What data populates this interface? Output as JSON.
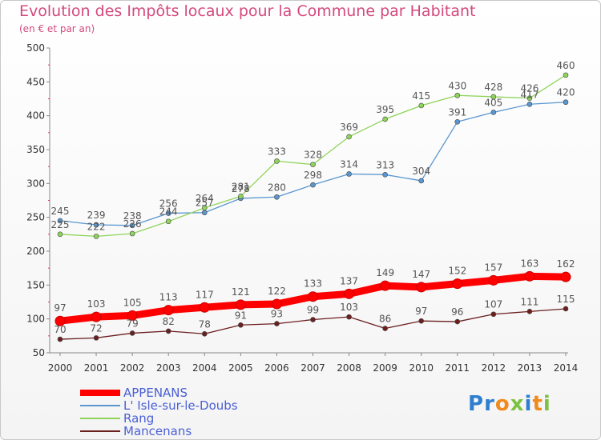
{
  "chart_data": {
    "type": "line",
    "title": "Evolution des Impôts locaux pour la Commune par Habitant",
    "subtitle": "(en € et par an)",
    "x": [
      "2000",
      "2001",
      "2002",
      "2003",
      "2004",
      "2005",
      "2006",
      "2007",
      "2008",
      "2009",
      "2010",
      "2011",
      "2012",
      "2013",
      "2014"
    ],
    "ylim": [
      50,
      500
    ],
    "yticks": [
      50,
      100,
      150,
      200,
      250,
      300,
      350,
      400,
      450,
      500
    ],
    "grid": false,
    "legend_position": "bottom-left",
    "series": [
      {
        "name": "APPENANS",
        "color": "#ff0000",
        "values": [
          97,
          103,
          105,
          113,
          117,
          121,
          122,
          133,
          137,
          149,
          147,
          152,
          157,
          163,
          162
        ]
      },
      {
        "name": "L' Isle-sur-le-Doubs",
        "color": "#5a96d0",
        "values": [
          245,
          239,
          238,
          256,
          257,
          278,
          280,
          298,
          314,
          313,
          304,
          391,
          405,
          417,
          420
        ]
      },
      {
        "name": "Rang",
        "color": "#8fd45a",
        "values": [
          225,
          222,
          226,
          244,
          264,
          281,
          333,
          328,
          369,
          395,
          415,
          430,
          428,
          426,
          460
        ]
      },
      {
        "name": "Mancenans",
        "color": "#6b1f1f",
        "values": [
          70,
          72,
          79,
          82,
          78,
          91,
          93,
          99,
          103,
          86,
          97,
          96,
          107,
          111,
          115
        ]
      }
    ]
  },
  "logo": {
    "letters": [
      "P",
      "r",
      "o",
      "x",
      "i",
      "t",
      "i"
    ],
    "colors": [
      "#2f7fd0",
      "#2f7fd0",
      "#f08a1c",
      "#7cc242",
      "#2f7fd0",
      "#f08a1c",
      "#7cc242"
    ]
  }
}
